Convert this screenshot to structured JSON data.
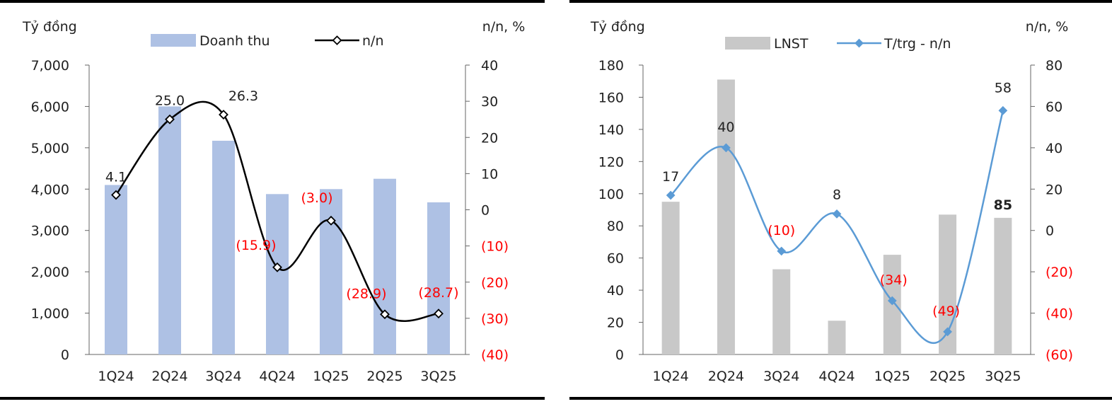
{
  "chart_data": [
    {
      "type": "bar+line",
      "title": "",
      "left_axis_label": "Tỷ đồng",
      "right_axis_label": "n/n, %",
      "categories": [
        "1Q24",
        "2Q24",
        "3Q24",
        "4Q24",
        "1Q25",
        "2Q25",
        "3Q25"
      ],
      "ylim_left": [
        0,
        7000
      ],
      "yticks_left": [
        "0",
        "1,000",
        "2,000",
        "3,000",
        "4,000",
        "5,000",
        "6,000",
        "7,000"
      ],
      "ylim_right": [
        -40,
        40
      ],
      "yticks_right": [
        "(40)",
        "(30)",
        "(20)",
        "(10)",
        "0",
        "10",
        "20",
        "30",
        "40"
      ],
      "series": [
        {
          "name": "Doanh thu",
          "kind": "bar",
          "axis": "left",
          "color": "#aec1e4",
          "values": [
            4100,
            6000,
            5170,
            3880,
            4000,
            4250,
            3680
          ]
        },
        {
          "name": "n/n",
          "kind": "line",
          "axis": "right",
          "color": "#000000",
          "values": [
            4.1,
            25.0,
            26.3,
            -15.9,
            -3.0,
            -28.9,
            -28.7
          ],
          "labels": [
            "4.1",
            "25.0",
            "26.3",
            "(15.9)",
            "(3.0)",
            "(28.9)",
            "(28.7)"
          ]
        }
      ],
      "label_colors": {
        "positive": "#222222",
        "negative": "#ff0000"
      }
    },
    {
      "type": "bar+line",
      "title": "",
      "left_axis_label": "Tỷ đồng",
      "right_axis_label": "n/n, %",
      "categories": [
        "1Q24",
        "2Q24",
        "3Q24",
        "4Q24",
        "1Q25",
        "2Q25",
        "3Q25"
      ],
      "ylim_left": [
        0,
        180
      ],
      "yticks_left": [
        "0",
        "20",
        "40",
        "60",
        "80",
        "100",
        "120",
        "140",
        "160",
        "180"
      ],
      "ylim_right": [
        -60,
        80
      ],
      "yticks_right": [
        "(60)",
        "(40)",
        "(20)",
        "0",
        "20",
        "40",
        "60",
        "80"
      ],
      "series": [
        {
          "name": "LNST",
          "kind": "bar",
          "axis": "left",
          "color": "#c8c8c8",
          "values": [
            95,
            171,
            53,
            21,
            62,
            87,
            85
          ],
          "labels": [
            "",
            "",
            "",
            "",
            "",
            "",
            "85"
          ]
        },
        {
          "name": "T/trg - n/n",
          "kind": "line",
          "axis": "right",
          "color": "#5b9bd5",
          "values": [
            17,
            40,
            -10,
            8,
            -34,
            -49,
            58
          ],
          "labels": [
            "17",
            "40",
            "(10)",
            "8",
            "(34)",
            "(49)",
            "58"
          ]
        }
      ],
      "label_colors": {
        "positive": "#222222",
        "negative": "#ff0000"
      }
    }
  ]
}
